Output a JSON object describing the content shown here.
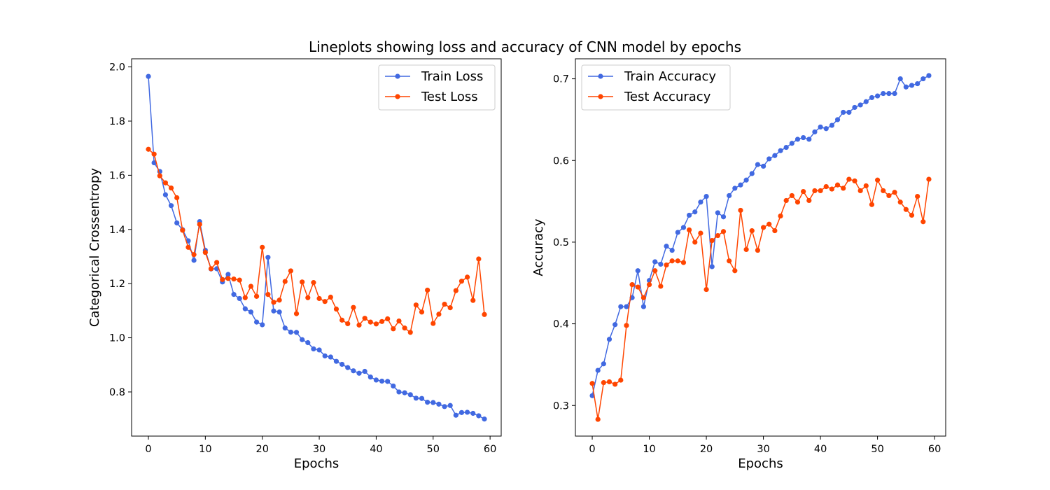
{
  "figure": {
    "suptitle": "Lineplots showing loss and accuracy of CNN model by epochs"
  },
  "colors": {
    "train": "#4169e1",
    "test": "#ff4500"
  },
  "chart_data": [
    {
      "type": "line",
      "xlabel": "Epochs",
      "ylabel": "Categorical Crossentropy",
      "xlim": [
        -2.95,
        61.95
      ],
      "ylim": [
        0.637,
        2.03
      ],
      "xticks": [
        0,
        10,
        20,
        30,
        40,
        50,
        60
      ],
      "yticks": [
        0.8,
        1.0,
        1.2,
        1.4,
        1.6,
        1.8,
        2.0
      ],
      "ytick_labels": [
        "0.8",
        "1.0",
        "1.2",
        "1.4",
        "1.6",
        "1.8",
        "2.0"
      ],
      "grid": false,
      "legend_position": "upper right",
      "series": [
        {
          "name": "Train Loss",
          "color": "#4169e1",
          "y": [
            1.965,
            1.646,
            1.614,
            1.528,
            1.488,
            1.424,
            1.399,
            1.358,
            1.286,
            1.429,
            1.323,
            1.254,
            1.255,
            1.206,
            1.234,
            1.16,
            1.145,
            1.107,
            1.095,
            1.058,
            1.048,
            1.297,
            1.099,
            1.095,
            1.036,
            1.021,
            1.02,
            0.993,
            0.982,
            0.959,
            0.955,
            0.933,
            0.929,
            0.913,
            0.902,
            0.89,
            0.878,
            0.869,
            0.876,
            0.855,
            0.844,
            0.84,
            0.839,
            0.822,
            0.8,
            0.797,
            0.79,
            0.777,
            0.776,
            0.762,
            0.761,
            0.755,
            0.746,
            0.75,
            0.714,
            0.724,
            0.725,
            0.721,
            0.712,
            0.7
          ]
        },
        {
          "name": "Test Loss",
          "color": "#ff4500",
          "y": [
            1.696,
            1.678,
            1.598,
            1.572,
            1.553,
            1.517,
            1.397,
            1.334,
            1.307,
            1.419,
            1.315,
            1.255,
            1.278,
            1.215,
            1.219,
            1.217,
            1.213,
            1.148,
            1.19,
            1.153,
            1.334,
            1.16,
            1.131,
            1.139,
            1.208,
            1.247,
            1.089,
            1.206,
            1.148,
            1.204,
            1.145,
            1.134,
            1.15,
            1.106,
            1.065,
            1.052,
            1.112,
            1.047,
            1.072,
            1.058,
            1.051,
            1.06,
            1.07,
            1.033,
            1.062,
            1.036,
            1.02,
            1.121,
            1.095,
            1.176,
            1.053,
            1.087,
            1.124,
            1.111,
            1.174,
            1.209,
            1.224,
            1.138,
            1.291,
            1.086
          ]
        }
      ]
    },
    {
      "type": "line",
      "xlabel": "Epochs",
      "ylabel": "Accuracy",
      "xlim": [
        -2.95,
        61.95
      ],
      "ylim": [
        0.2625,
        0.7245
      ],
      "xticks": [
        0,
        10,
        20,
        30,
        40,
        50,
        60
      ],
      "yticks": [
        0.3,
        0.4,
        0.5,
        0.6,
        0.7
      ],
      "ytick_labels": [
        "0.3",
        "0.4",
        "0.5",
        "0.6",
        "0.7"
      ],
      "grid": false,
      "legend_position": "upper left",
      "series": [
        {
          "name": "Train Accuracy",
          "color": "#4169e1",
          "y": [
            0.312,
            0.343,
            0.351,
            0.381,
            0.399,
            0.421,
            0.421,
            0.432,
            0.465,
            0.421,
            0.453,
            0.476,
            0.473,
            0.495,
            0.49,
            0.512,
            0.518,
            0.533,
            0.537,
            0.549,
            0.556,
            0.47,
            0.536,
            0.531,
            0.557,
            0.566,
            0.57,
            0.576,
            0.584,
            0.595,
            0.593,
            0.602,
            0.606,
            0.612,
            0.616,
            0.621,
            0.626,
            0.628,
            0.626,
            0.635,
            0.641,
            0.639,
            0.643,
            0.65,
            0.659,
            0.659,
            0.665,
            0.668,
            0.672,
            0.677,
            0.679,
            0.682,
            0.682,
            0.682,
            0.7,
            0.69,
            0.692,
            0.694,
            0.7,
            0.704
          ]
        },
        {
          "name": "Test Accuracy",
          "color": "#ff4500",
          "y": [
            0.327,
            0.283,
            0.328,
            0.329,
            0.326,
            0.331,
            0.398,
            0.448,
            0.445,
            0.432,
            0.448,
            0.465,
            0.446,
            0.472,
            0.477,
            0.477,
            0.475,
            0.515,
            0.5,
            0.511,
            0.442,
            0.502,
            0.508,
            0.513,
            0.477,
            0.465,
            0.539,
            0.491,
            0.514,
            0.49,
            0.518,
            0.522,
            0.514,
            0.532,
            0.551,
            0.557,
            0.549,
            0.562,
            0.551,
            0.563,
            0.563,
            0.568,
            0.565,
            0.57,
            0.566,
            0.577,
            0.575,
            0.563,
            0.569,
            0.546,
            0.576,
            0.563,
            0.557,
            0.561,
            0.549,
            0.54,
            0.533,
            0.556,
            0.525,
            0.577
          ]
        }
      ]
    }
  ]
}
